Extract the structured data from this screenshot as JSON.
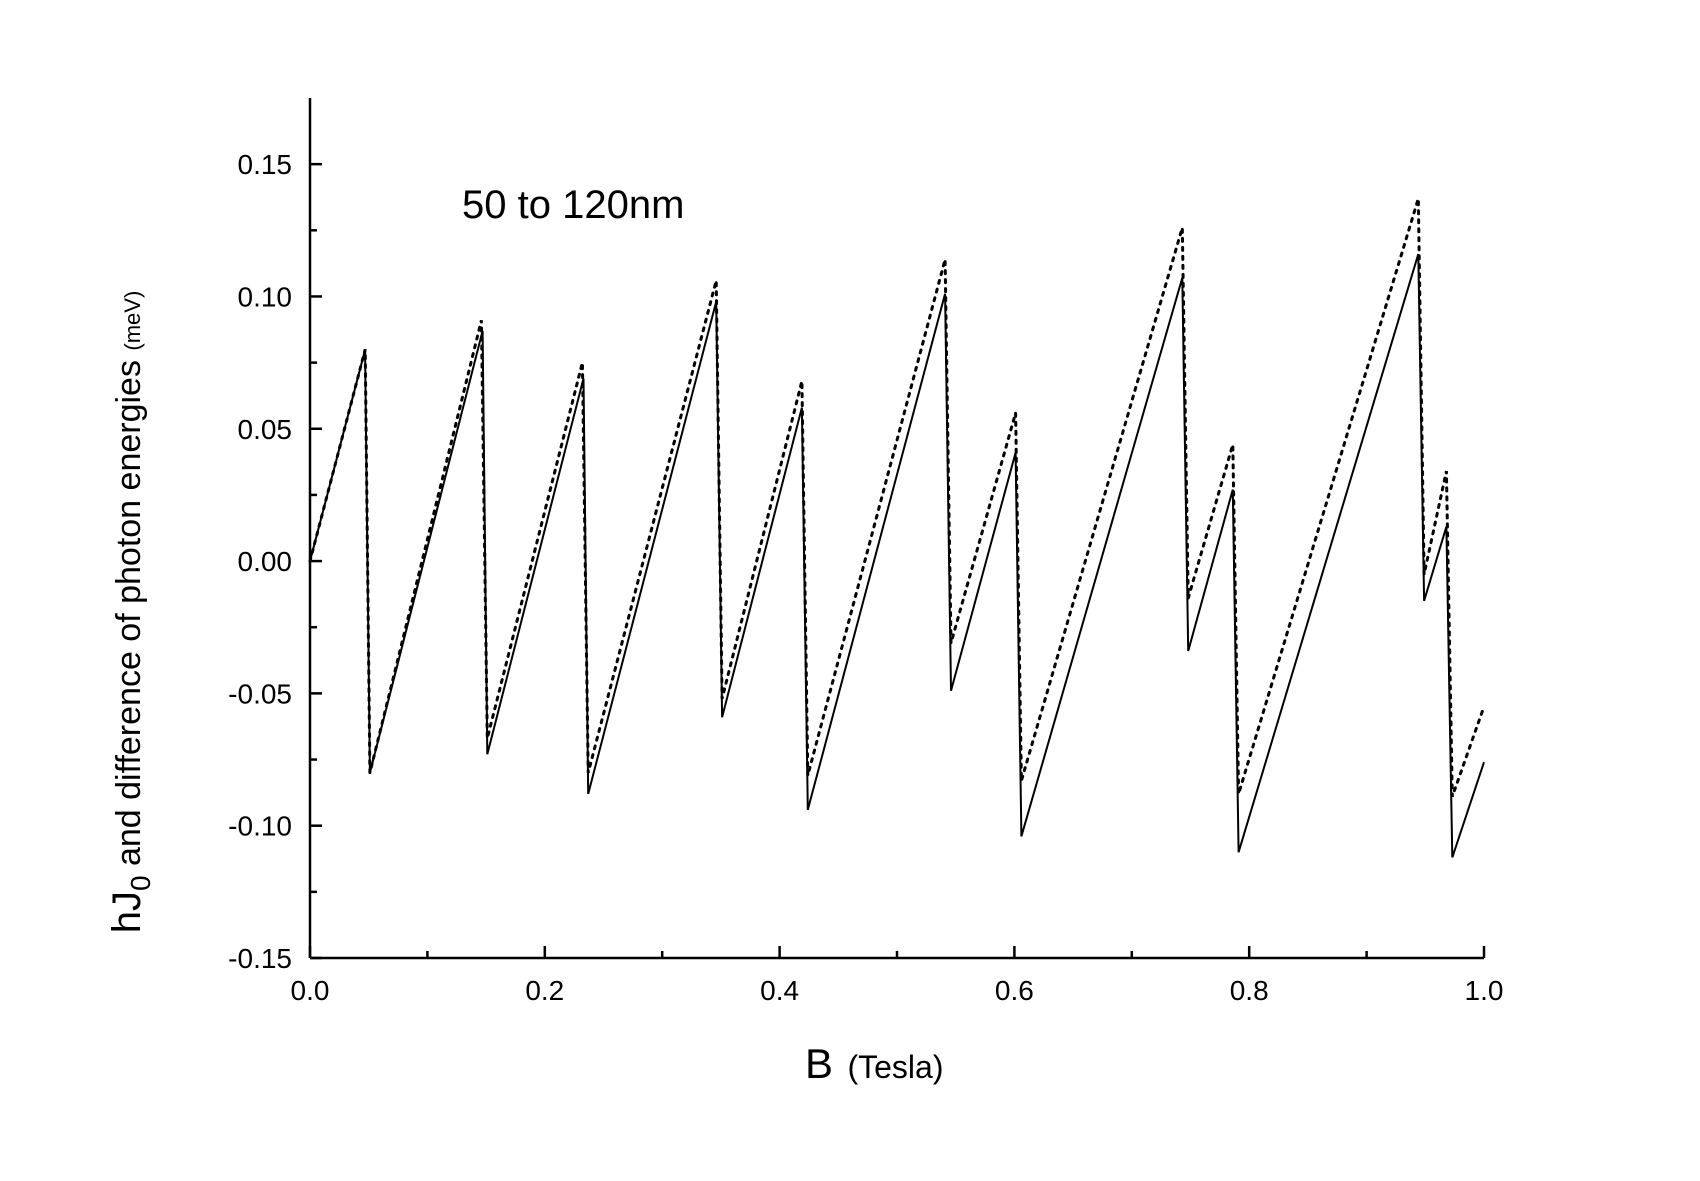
{
  "chart_data": {
    "type": "line",
    "title": "",
    "annotation": "50 to 120nm",
    "xlabel": {
      "main": "B",
      "unit": "(Tesla)"
    },
    "ylabel": {
      "prefix": "hJ",
      "subscript": "0",
      "suffix": " and  difference of photon energies ",
      "unit": "(meV)"
    },
    "xlim": [
      0.0,
      1.0
    ],
    "ylim": [
      -0.15,
      0.175
    ],
    "x_ticks": [
      0.0,
      0.1,
      0.2,
      0.3,
      0.4,
      0.5,
      0.6,
      0.7,
      0.8,
      0.9,
      1.0
    ],
    "x_tick_labels": [
      "0.0",
      "0.2",
      "0.4",
      "0.6",
      "0.8",
      "1.0"
    ],
    "x_tick_label_values": [
      0.0,
      0.2,
      0.4,
      0.6,
      0.8,
      1.0
    ],
    "y_ticks": [
      -0.15,
      -0.125,
      -0.1,
      -0.075,
      -0.05,
      -0.025,
      0.0,
      0.025,
      0.05,
      0.075,
      0.1,
      0.125,
      0.15
    ],
    "y_tick_labels": [
      "-0.15",
      "-0.10",
      "-0.05",
      "0.00",
      "0.05",
      "0.10",
      "0.15"
    ],
    "y_tick_label_values": [
      -0.15,
      -0.1,
      -0.05,
      0.0,
      0.05,
      0.1,
      0.15
    ],
    "grid": false,
    "legend": "none",
    "series": [
      {
        "style": "solid",
        "color": "#000000",
        "points": [
          [
            0.0,
            0.0
          ],
          [
            0.047,
            0.08
          ],
          [
            0.047,
            0.075
          ],
          [
            0.051,
            -0.08
          ],
          [
            0.147,
            0.087
          ],
          [
            0.151,
            -0.073
          ],
          [
            0.233,
            0.069
          ],
          [
            0.237,
            -0.088
          ],
          [
            0.346,
            0.098
          ],
          [
            0.351,
            -0.059
          ],
          [
            0.419,
            0.058
          ],
          [
            0.424,
            -0.094
          ],
          [
            0.541,
            0.101
          ],
          [
            0.546,
            -0.049
          ],
          [
            0.601,
            0.041
          ],
          [
            0.606,
            -0.104
          ],
          [
            0.743,
            0.107
          ],
          [
            0.748,
            -0.034
          ],
          [
            0.786,
            0.027
          ],
          [
            0.791,
            -0.11
          ],
          [
            0.944,
            0.116
          ],
          [
            0.949,
            -0.015
          ],
          [
            0.968,
            0.013
          ],
          [
            0.973,
            -0.112
          ],
          [
            1.0,
            -0.076
          ]
        ]
      },
      {
        "style": "dotted",
        "color": "#000000",
        "points": [
          [
            0.0,
            0.0
          ],
          [
            0.047,
            0.08
          ],
          [
            0.051,
            -0.08
          ],
          [
            0.146,
            0.091
          ],
          [
            0.151,
            -0.067
          ],
          [
            0.232,
            0.075
          ],
          [
            0.237,
            -0.08
          ],
          [
            0.346,
            0.106
          ],
          [
            0.351,
            -0.052
          ],
          [
            0.419,
            0.068
          ],
          [
            0.424,
            -0.081
          ],
          [
            0.541,
            0.114
          ],
          [
            0.546,
            -0.031
          ],
          [
            0.601,
            0.056
          ],
          [
            0.606,
            -0.083
          ],
          [
            0.743,
            0.126
          ],
          [
            0.748,
            -0.014
          ],
          [
            0.786,
            0.044
          ],
          [
            0.791,
            -0.088
          ],
          [
            0.944,
            0.137
          ],
          [
            0.949,
            -0.005
          ],
          [
            0.968,
            0.034
          ],
          [
            0.973,
            -0.089
          ],
          [
            1.0,
            -0.055
          ]
        ]
      }
    ]
  }
}
